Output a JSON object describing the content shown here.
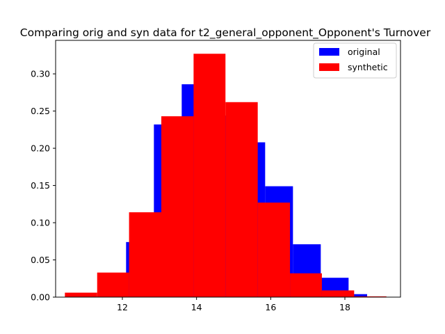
{
  "chart_data": {
    "type": "bar",
    "title": "Comparing orig and syn data for t2_general_opponent_Opponent's Turnover",
    "xlabel": "",
    "ylabel": "",
    "xlim": [
      10.2,
      19.5
    ],
    "ylim": [
      0,
      0.345
    ],
    "x_ticks": [
      12,
      14,
      16,
      18
    ],
    "y_ticks": [
      0.0,
      0.05,
      0.1,
      0.15,
      0.2,
      0.25,
      0.3
    ],
    "legend_position": "top-right",
    "series": [
      {
        "name": "original",
        "color": "#0000ff",
        "bins": [
          {
            "x0": 11.35,
            "x1": 12.1,
            "value": 0.029
          },
          {
            "x0": 12.1,
            "x1": 12.85,
            "value": 0.074
          },
          {
            "x0": 12.85,
            "x1": 13.6,
            "value": 0.232
          },
          {
            "x0": 13.6,
            "x1": 14.35,
            "value": 0.286
          },
          {
            "x0": 14.35,
            "x1": 15.1,
            "value": 0.244
          },
          {
            "x0": 15.1,
            "x1": 15.85,
            "value": 0.208
          },
          {
            "x0": 15.85,
            "x1": 16.6,
            "value": 0.149
          },
          {
            "x0": 16.6,
            "x1": 17.35,
            "value": 0.071
          },
          {
            "x0": 17.35,
            "x1": 18.1,
            "value": 0.026
          },
          {
            "x0": 18.1,
            "x1": 18.6,
            "value": 0.004
          }
        ]
      },
      {
        "name": "synthetic",
        "color": "#ff0000",
        "bins": [
          {
            "x0": 10.45,
            "x1": 11.32,
            "value": 0.006
          },
          {
            "x0": 11.32,
            "x1": 12.18,
            "value": 0.033
          },
          {
            "x0": 12.18,
            "x1": 13.05,
            "value": 0.114
          },
          {
            "x0": 13.05,
            "x1": 13.92,
            "value": 0.243
          },
          {
            "x0": 13.92,
            "x1": 14.78,
            "value": 0.327
          },
          {
            "x0": 14.78,
            "x1": 15.65,
            "value": 0.262
          },
          {
            "x0": 15.65,
            "x1": 16.52,
            "value": 0.127
          },
          {
            "x0": 16.52,
            "x1": 17.38,
            "value": 0.032
          },
          {
            "x0": 17.38,
            "x1": 18.25,
            "value": 0.009
          },
          {
            "x0": 18.25,
            "x1": 19.12,
            "value": 0.001
          }
        ]
      }
    ]
  }
}
